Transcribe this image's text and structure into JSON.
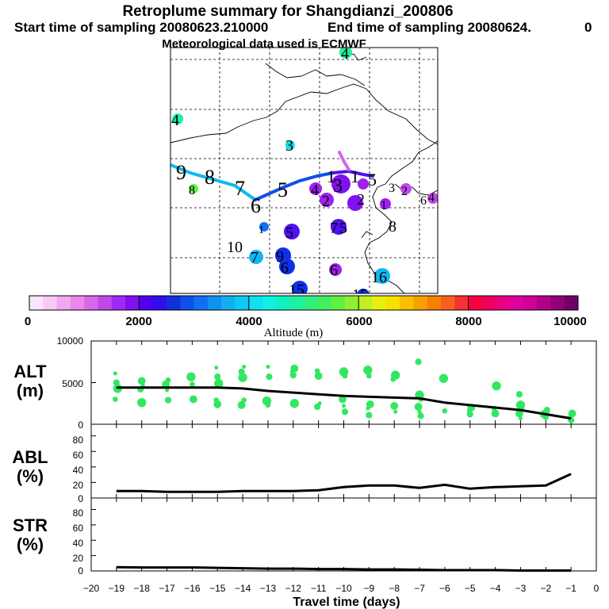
{
  "titles": {
    "line1": "Retroplume summary for Shangdianzi_200806",
    "line2_start": "Start time of sampling 20080623.210000",
    "line2_end": "End time of sampling 20080624.",
    "line2_tail": "0",
    "line3": "Meteorological data used is ECMWF"
  },
  "colorbar": {
    "min": 0,
    "max": 10000,
    "tick_labels": [
      "0",
      "2000",
      "4000",
      "6000",
      "8000",
      "10000"
    ],
    "label": "Altitude (m)",
    "colors": [
      "#fce4fc",
      "#f8c8f8",
      "#f0a8f0",
      "#e888e8",
      "#d868e8",
      "#c048e8",
      "#a028f0",
      "#8010f0",
      "#5000f0",
      "#3010e8",
      "#1030e0",
      "#1050e8",
      "#1070f0",
      "#1090f0",
      "#10b0f0",
      "#10c8f0",
      "#10e0f0",
      "#10f0e0",
      "#10f0c0",
      "#20f0a0",
      "#30f080",
      "#40f060",
      "#60f040",
      "#90f030",
      "#c0f020",
      "#e8f010",
      "#f8e000",
      "#f8c000",
      "#f8a000",
      "#f88000",
      "#f86020",
      "#f83030",
      "#f80040",
      "#f00060",
      "#e80080",
      "#e000a0",
      "#d00098",
      "#b00088",
      "#900078",
      "#700068"
    ]
  },
  "map": {
    "labels": [
      "4",
      "4",
      "3",
      "9",
      "8",
      "8",
      "7",
      "6",
      "5",
      "4",
      "3",
      "2",
      "1",
      "1",
      "5",
      "3",
      "2",
      "2",
      "1",
      "6",
      "7",
      "5",
      "5",
      "8",
      "4",
      "10",
      "7",
      "9",
      "6",
      "6",
      "16",
      "15",
      "15",
      "1"
    ],
    "marker_colors": {
      "violet": "#a020f0",
      "purple": "#8010f0",
      "indigo": "#5010f0",
      "blue": "#1030e8",
      "cyan": "#10b8f0",
      "green": "#20f0a0",
      "lime": "#60f040",
      "pink": "#d068e8"
    }
  },
  "panels": {
    "alt": {
      "title_line1": "ALT",
      "title_line2": "(m)",
      "y_ticks": [
        "10000",
        "5000",
        "0"
      ]
    },
    "abl": {
      "title_line1": "ABL",
      "title_line2": "(%)",
      "y_ticks": [
        "80",
        "60",
        "40",
        "20",
        "0"
      ]
    },
    "str": {
      "title_line1": "STR",
      "title_line2": "(%)",
      "y_ticks": [
        "80",
        "60",
        "40",
        "20",
        "0"
      ]
    }
  },
  "x_axis": {
    "label": "Travel time (days)",
    "ticks": [
      "−20",
      "−19",
      "−18",
      "−17",
      "−16",
      "−15",
      "−14",
      "−13",
      "−12",
      "−11",
      "−10",
      "−9",
      "−8",
      "−7",
      "−6",
      "−5",
      "−4",
      "−3",
      "−2",
      "−1",
      "0"
    ]
  },
  "chart_data": [
    {
      "type": "line",
      "title": "ALT (m)",
      "xlabel": "Travel time (days)",
      "ylabel": "Altitude (m)",
      "xlim": [
        -20,
        0
      ],
      "ylim": [
        0,
        10000
      ],
      "series": [
        {
          "name": "mean altitude",
          "x": [
            -19,
            -18,
            -17,
            -16,
            -15,
            -14,
            -13,
            -12,
            -11,
            -10,
            -9,
            -8,
            -7,
            -6,
            -5,
            -4,
            -3,
            -2,
            -1
          ],
          "values": [
            4400,
            4400,
            4400,
            4400,
            4400,
            4300,
            4000,
            3800,
            3600,
            3400,
            3300,
            3200,
            3100,
            2600,
            2300,
            2000,
            1700,
            1200,
            700
          ]
        }
      ],
      "scatter_points": [
        [
          -19,
          6100
        ],
        [
          -19,
          5000
        ],
        [
          -19,
          4300
        ],
        [
          -19,
          3000
        ],
        [
          -18,
          5200
        ],
        [
          -18,
          4700
        ],
        [
          -18,
          4200
        ],
        [
          -18,
          2600
        ],
        [
          -17,
          5300
        ],
        [
          -17,
          4800
        ],
        [
          -17,
          4100
        ],
        [
          -17,
          2900
        ],
        [
          -16,
          5700
        ],
        [
          -16,
          4800
        ],
        [
          -16,
          3000
        ],
        [
          -15,
          6800
        ],
        [
          -15,
          5700
        ],
        [
          -15,
          4900
        ],
        [
          -15,
          2900
        ],
        [
          -15,
          2400
        ],
        [
          -14,
          6900
        ],
        [
          -14,
          6300
        ],
        [
          -14,
          5600
        ],
        [
          -14,
          2900
        ],
        [
          -14,
          2300
        ],
        [
          -13,
          6900
        ],
        [
          -13,
          5700
        ],
        [
          -13,
          2800
        ],
        [
          -13,
          2300
        ],
        [
          -12,
          6700
        ],
        [
          -12,
          6300
        ],
        [
          -12,
          5900
        ],
        [
          -12,
          2500
        ],
        [
          -11,
          6400
        ],
        [
          -11,
          5800
        ],
        [
          -11,
          2500
        ],
        [
          -11,
          2100
        ],
        [
          -10,
          6300
        ],
        [
          -10,
          5800
        ],
        [
          -10,
          3000
        ],
        [
          -10,
          2200
        ],
        [
          -10,
          1500
        ],
        [
          -9,
          6500
        ],
        [
          -9,
          5800
        ],
        [
          -9,
          2400
        ],
        [
          -9,
          1900
        ],
        [
          -9,
          1100
        ],
        [
          -8,
          5900
        ],
        [
          -8,
          5400
        ],
        [
          -8,
          2200
        ],
        [
          -8,
          1500
        ],
        [
          -7,
          7500
        ],
        [
          -7,
          3500
        ],
        [
          -7,
          3000
        ],
        [
          -7,
          2100
        ],
        [
          -7,
          1500
        ],
        [
          -7,
          1000
        ],
        [
          -6,
          5500
        ],
        [
          -6,
          1600
        ],
        [
          -5,
          2000
        ],
        [
          -5,
          1600
        ],
        [
          -5,
          1200
        ],
        [
          -4,
          4600
        ],
        [
          -4,
          1900
        ],
        [
          -4,
          1300
        ],
        [
          -4,
          1100
        ],
        [
          -3,
          3600
        ],
        [
          -3,
          2300
        ],
        [
          -3,
          1800
        ],
        [
          -3,
          1300
        ],
        [
          -3,
          700
        ],
        [
          -2,
          1700
        ],
        [
          -2,
          1200
        ],
        [
          -2,
          800
        ],
        [
          -1,
          1300
        ],
        [
          -1,
          800
        ],
        [
          -1,
          500
        ]
      ]
    },
    {
      "type": "line",
      "title": "ABL (%)",
      "xlabel": "Travel time (days)",
      "ylabel": "ABL (%)",
      "xlim": [
        -20,
        0
      ],
      "ylim": [
        0,
        95
      ],
      "series": [
        {
          "name": "ABL fraction",
          "x": [
            -19,
            -18,
            -17,
            -16,
            -15,
            -14,
            -13,
            -12,
            -11,
            -10,
            -9,
            -8,
            -7,
            -6,
            -5,
            -4,
            -3,
            -2,
            -1
          ],
          "values": [
            9,
            9,
            8,
            8,
            8,
            9,
            9,
            9,
            10,
            14,
            16,
            16,
            13,
            17,
            12,
            14,
            15,
            16,
            31
          ]
        }
      ]
    },
    {
      "type": "line",
      "title": "STR (%)",
      "xlabel": "Travel time (days)",
      "ylabel": "STR (%)",
      "xlim": [
        -20,
        0
      ],
      "ylim": [
        0,
        95
      ],
      "series": [
        {
          "name": "STR fraction",
          "x": [
            -19,
            -18,
            -17,
            -16,
            -15,
            -14,
            -13,
            -12,
            -11,
            -10,
            -9,
            -8,
            -7,
            -6,
            -5,
            -4,
            -3,
            -2,
            -1
          ],
          "values": [
            5,
            4.5,
            4.5,
            4.5,
            4,
            3.5,
            3,
            3,
            2.5,
            2.5,
            2,
            2,
            1.5,
            1,
            1,
            1,
            0.5,
            0.5,
            0.5
          ]
        }
      ]
    }
  ]
}
